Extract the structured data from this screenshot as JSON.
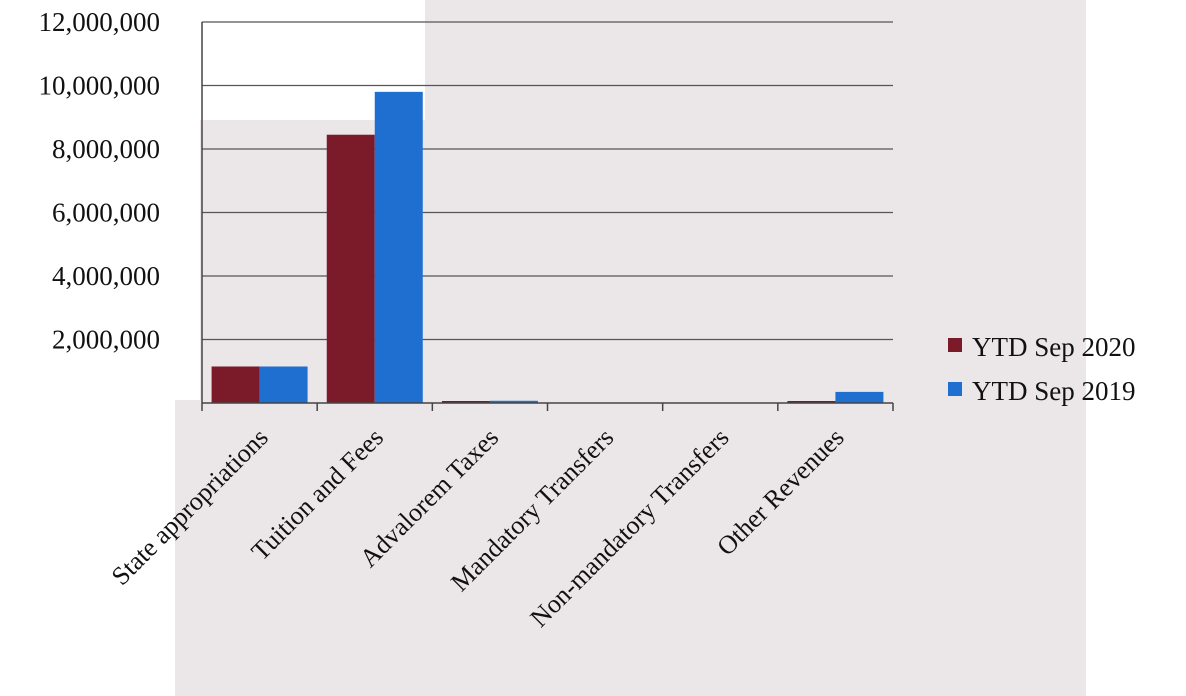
{
  "chart_data": {
    "type": "bar",
    "categories": [
      "State appropriations",
      "Tuition and Fees",
      "Advalorem Taxes",
      "Mandatory Transfers",
      "Non-mandatory Transfers",
      "Other Revenues"
    ],
    "series": [
      {
        "name": "YTD Sep 2020",
        "values": [
          1150000,
          8450000,
          60000,
          0,
          0,
          60000
        ]
      },
      {
        "name": "YTD Sep 2019",
        "values": [
          1150000,
          9800000,
          70000,
          0,
          0,
          350000
        ]
      }
    ],
    "ylim": [
      0,
      12000000
    ],
    "yticks": [
      "2,000,000",
      "4,000,000",
      "6,000,000",
      "8,000,000",
      "10,000,000",
      "12,000,000"
    ],
    "ytick_values": [
      2000000,
      4000000,
      6000000,
      8000000,
      10000000,
      12000000
    ],
    "grid": true,
    "legend": "right",
    "colors": [
      "#7b1b2a",
      "#1f6fd1"
    ]
  }
}
